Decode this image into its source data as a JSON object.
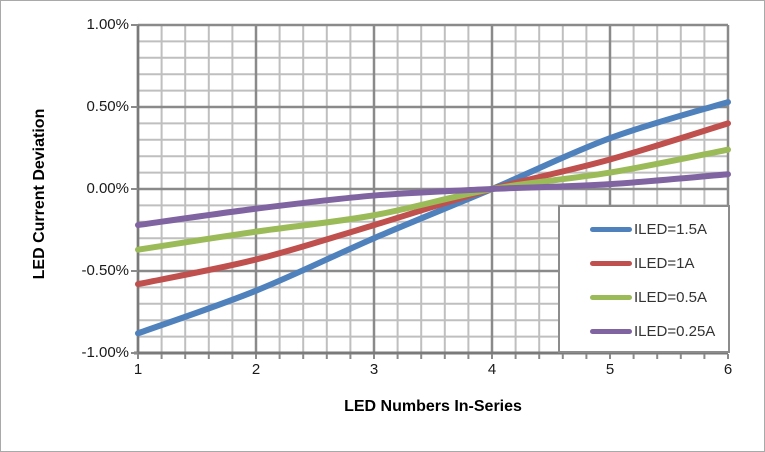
{
  "window": {
    "background": "#ffffff",
    "frame_border_color": "#a9a9a9"
  },
  "chart_data": {
    "type": "line",
    "title": "",
    "xlabel": "LED Numbers In-Series",
    "ylabel": "LED Current Deviation",
    "x": [
      1,
      2,
      3,
      4,
      5,
      6
    ],
    "xlim": [
      1,
      6
    ],
    "ylim_pct": [
      -1.0,
      1.0
    ],
    "x_major_step": 1,
    "x_minor_step": 0.2,
    "y_major_step_pct": 0.5,
    "y_minor_step_pct": 0.1,
    "x_tick_labels": [
      "1",
      "2",
      "3",
      "4",
      "5",
      "6"
    ],
    "y_tick_labels": [
      "1.00%",
      "0.50%",
      "0.00%",
      "-0.50%",
      "-1.00%"
    ],
    "grid": true,
    "legend_position": "inside-bottom-right",
    "series": [
      {
        "name": "ILED=1.5A",
        "color": "#4F81BD",
        "values_pct": [
          -0.88,
          -0.62,
          -0.3,
          0.0,
          0.31,
          0.53
        ]
      },
      {
        "name": "ILED=1A",
        "color": "#C0504D",
        "values_pct": [
          -0.58,
          -0.43,
          -0.22,
          0.0,
          0.18,
          0.4
        ]
      },
      {
        "name": "ILED=0.5A",
        "color": "#9BBB59",
        "values_pct": [
          -0.37,
          -0.26,
          -0.16,
          0.0,
          0.1,
          0.24
        ]
      },
      {
        "name": "ILED=0.25A",
        "color": "#8064A2",
        "values_pct": [
          -0.22,
          -0.12,
          -0.04,
          0.0,
          0.03,
          0.09
        ]
      }
    ],
    "colors": {
      "grid_minor": "#bfbfbf",
      "grid_major": "#8a8a8a",
      "axis": "#7a7a7a",
      "tick_text": "#1a1a1a",
      "legend_border": "#8c8c8c",
      "legend_text": "#333333"
    }
  }
}
